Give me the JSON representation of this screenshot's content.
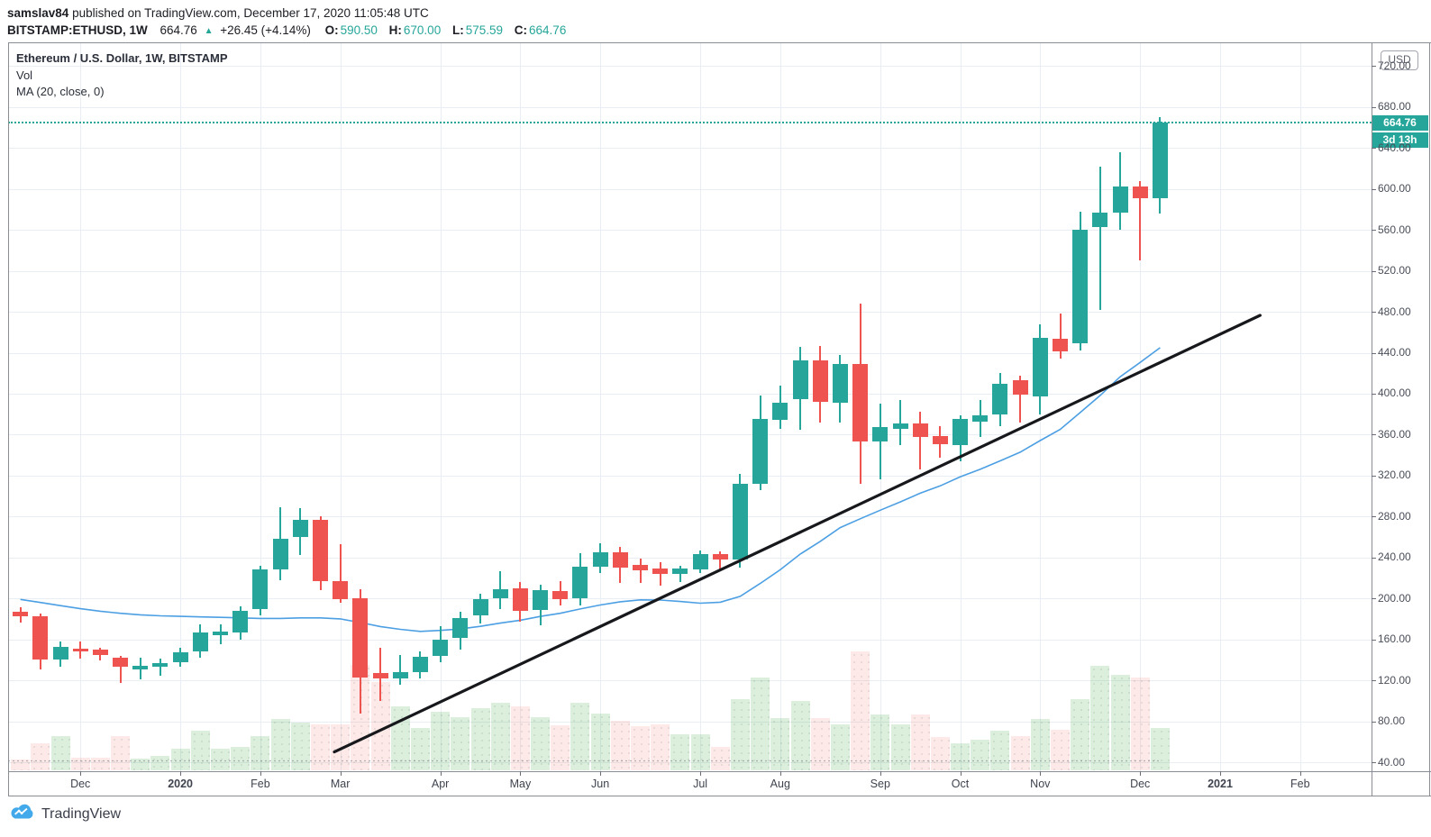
{
  "header": {
    "byline_user": "samslav84",
    "byline_rest": " published on TradingView.com, December 17, 2020 11:05:48 UTC",
    "symbol": "BITSTAMP:ETHUSD, 1W",
    "last_price": "664.76",
    "up_glyph": "▲",
    "change": "+26.45 (+4.14%)",
    "ohlc": [
      {
        "label": "O:",
        "value": "590.50"
      },
      {
        "label": "H:",
        "value": "670.00"
      },
      {
        "label": "L:",
        "value": "575.59"
      },
      {
        "label": "C:",
        "value": "664.76"
      }
    ]
  },
  "legend": {
    "title": "Ethereum / U.S. Dollar, 1W, BITSTAMP",
    "vol": "Vol",
    "ma": "MA (20, close, 0)"
  },
  "price_axis": {
    "currency_button": "USD",
    "levels": [
      720,
      680,
      640,
      600,
      560,
      520,
      480,
      440,
      400,
      360,
      320,
      280,
      240,
      200,
      160,
      120,
      80,
      40
    ]
  },
  "time_axis": {
    "months": [
      {
        "label": "Dec",
        "week_index": 3,
        "bold": false
      },
      {
        "label": "2020",
        "week_index": 8,
        "bold": true
      },
      {
        "label": "Feb",
        "week_index": 12,
        "bold": false
      },
      {
        "label": "Mar",
        "week_index": 16,
        "bold": false
      },
      {
        "label": "Apr",
        "week_index": 21,
        "bold": false
      },
      {
        "label": "May",
        "week_index": 25,
        "bold": false
      },
      {
        "label": "Jun",
        "week_index": 29,
        "bold": false
      },
      {
        "label": "Jul",
        "week_index": 34,
        "bold": false
      },
      {
        "label": "Aug",
        "week_index": 38,
        "bold": false
      },
      {
        "label": "Sep",
        "week_index": 43,
        "bold": false
      },
      {
        "label": "Oct",
        "week_index": 47,
        "bold": false
      },
      {
        "label": "Nov",
        "week_index": 51,
        "bold": false
      },
      {
        "label": "Dec",
        "week_index": 56,
        "bold": false
      },
      {
        "label": "2021",
        "week_index": 60,
        "bold": true
      },
      {
        "label": "Feb",
        "week_index": 64,
        "bold": false
      }
    ]
  },
  "price_marker": {
    "text": "664.76",
    "countdown": "3d 13h"
  },
  "footer": {
    "brand": "TradingView"
  },
  "colors": {
    "up": "#26a69a",
    "down": "#ef5350",
    "vol_up": "rgba(76,175,80,0.20)",
    "vol_down": "rgba(239,83,80,0.13)",
    "ma": "#4c9fe3",
    "trend": "#17181c",
    "grid": "#e9eef4",
    "marker_bg": "#26a69a",
    "vol_ma_dash": "rgba(120,123,134,0.55)"
  },
  "chart_data": {
    "type": "candlestick+volume",
    "symbol": "BITSTAMP:ETHUSD",
    "interval": "1W",
    "title": "Ethereum / U.S. Dollar, 1W, BITSTAMP",
    "ylim_visible": [
      32,
      743
    ],
    "grid": true,
    "current_price": 664.76,
    "bar_countdown": "3d 13h",
    "candles": {
      "columns": [
        "week_start",
        "open",
        "high",
        "low",
        "close",
        "volume_rel"
      ],
      "rows": [
        [
          "2019-11-11",
          187,
          191,
          176,
          183,
          0.09
        ],
        [
          "2019-11-18",
          183,
          185,
          131,
          140,
          0.23
        ],
        [
          "2019-11-25",
          140,
          158,
          133,
          153,
          0.29
        ],
        [
          "2019-12-02",
          151,
          158,
          141,
          148,
          0.11
        ],
        [
          "2019-12-09",
          150,
          152,
          139,
          145,
          0.11
        ],
        [
          "2019-12-16",
          142,
          144,
          117,
          133,
          0.29
        ],
        [
          "2019-12-23",
          131,
          142,
          121,
          134,
          0.1
        ],
        [
          "2019-12-30",
          133,
          141,
          124,
          137,
          0.12
        ],
        [
          "2020-01-06",
          138,
          152,
          133,
          147,
          0.18
        ],
        [
          "2020-01-13",
          148,
          175,
          142,
          167,
          0.33
        ],
        [
          "2020-01-20",
          164,
          175,
          155,
          168,
          0.18
        ],
        [
          "2020-01-27",
          167,
          192,
          160,
          188,
          0.2
        ],
        [
          "2020-02-03",
          190,
          232,
          183,
          228,
          0.29
        ],
        [
          "2020-02-10",
          228,
          289,
          218,
          258,
          0.43
        ],
        [
          "2020-02-17",
          260,
          288,
          242,
          277,
          0.4
        ],
        [
          "2020-02-24",
          277,
          280,
          208,
          217,
          0.39
        ],
        [
          "2020-03-02",
          217,
          253,
          196,
          199,
          0.39
        ],
        [
          "2020-03-09",
          200,
          209,
          88,
          123,
          0.89
        ],
        [
          "2020-03-16",
          127,
          152,
          100,
          122,
          0.74
        ],
        [
          "2020-03-23",
          122,
          145,
          116,
          128,
          0.54
        ],
        [
          "2020-03-30",
          128,
          148,
          122,
          143,
          0.36
        ],
        [
          "2020-04-06",
          144,
          173,
          138,
          160,
          0.49
        ],
        [
          "2020-04-13",
          161,
          187,
          150,
          181,
          0.45
        ],
        [
          "2020-04-20",
          183,
          205,
          176,
          199,
          0.52
        ],
        [
          "2020-04-27",
          200,
          227,
          190,
          209,
          0.57
        ],
        [
          "2020-05-04",
          210,
          216,
          177,
          188,
          0.54
        ],
        [
          "2020-05-11",
          189,
          213,
          174,
          208,
          0.45
        ],
        [
          "2020-05-18",
          207,
          217,
          193,
          199,
          0.38
        ],
        [
          "2020-05-25",
          200,
          244,
          193,
          231,
          0.57
        ],
        [
          "2020-06-01",
          231,
          254,
          225,
          245,
          0.48
        ],
        [
          "2020-06-08",
          245,
          250,
          215,
          230,
          0.42
        ],
        [
          "2020-06-15",
          233,
          239,
          215,
          227,
          0.37
        ],
        [
          "2020-06-22",
          229,
          235,
          212,
          224,
          0.39
        ],
        [
          "2020-06-29",
          224,
          232,
          216,
          229,
          0.3
        ],
        [
          "2020-07-06",
          228,
          247,
          225,
          243,
          0.3
        ],
        [
          "2020-07-13",
          243,
          246,
          228,
          238,
          0.2
        ],
        [
          "2020-07-20",
          238,
          322,
          230,
          312,
          0.6
        ],
        [
          "2020-07-27",
          312,
          398,
          306,
          375,
          0.78
        ],
        [
          "2020-08-03",
          374,
          408,
          366,
          391,
          0.44
        ],
        [
          "2020-08-10",
          395,
          446,
          365,
          433,
          0.58
        ],
        [
          "2020-08-17",
          433,
          447,
          372,
          392,
          0.44
        ],
        [
          "2020-08-24",
          391,
          438,
          372,
          429,
          0.39
        ],
        [
          "2020-08-31",
          429,
          488,
          312,
          353,
          1.0
        ],
        [
          "2020-09-07",
          353,
          390,
          316,
          367,
          0.47
        ],
        [
          "2020-09-14",
          366,
          394,
          350,
          371,
          0.39
        ],
        [
          "2020-09-21",
          371,
          382,
          326,
          358,
          0.47
        ],
        [
          "2020-09-28",
          359,
          368,
          337,
          351,
          0.28
        ],
        [
          "2020-10-05",
          350,
          379,
          334,
          375,
          0.23
        ],
        [
          "2020-10-12",
          373,
          394,
          358,
          379,
          0.26
        ],
        [
          "2020-10-19",
          380,
          420,
          368,
          410,
          0.33
        ],
        [
          "2020-10-26",
          413,
          418,
          372,
          399,
          0.29
        ],
        [
          "2020-11-02",
          397,
          468,
          380,
          455,
          0.43
        ],
        [
          "2020-11-09",
          454,
          478,
          434,
          441,
          0.34
        ],
        [
          "2020-11-16",
          449,
          578,
          442,
          560,
          0.6
        ],
        [
          "2020-11-23",
          563,
          622,
          482,
          577,
          0.88
        ],
        [
          "2020-11-30",
          577,
          636,
          560,
          602,
          0.8
        ],
        [
          "2020-12-07",
          602,
          608,
          530,
          591,
          0.78
        ],
        [
          "2020-12-14",
          590.5,
          670.0,
          575.59,
          664.76,
          0.36
        ]
      ]
    },
    "ma20": [
      199,
      196,
      193,
      190,
      187.5,
      185.5,
      184,
      183,
      182.5,
      182,
      181.5,
      181,
      180.5,
      180.5,
      181,
      181,
      180,
      176.5,
      172.5,
      169.8,
      167.8,
      168.8,
      170.2,
      172.7,
      175.9,
      178.7,
      182.4,
      185.5,
      189.7,
      193.6,
      196.7,
      198.6,
      198.4,
      197,
      195.3,
      196.3,
      202,
      214.6,
      228,
      243.3,
      255.7,
      269.2,
      277.8,
      286.2,
      294.3,
      302.8,
      309.9,
      318.7,
      326.1,
      334.4,
      342.8,
      354.2,
      365.1,
      381.6,
      398.3,
      416.5,
      430.5,
      444.9
    ],
    "trendline": {
      "from": {
        "week_index": 15.7,
        "price": 50
      },
      "to": {
        "week_index": 62.0,
        "price": 476.5
      }
    },
    "legend_position": "top-left"
  }
}
